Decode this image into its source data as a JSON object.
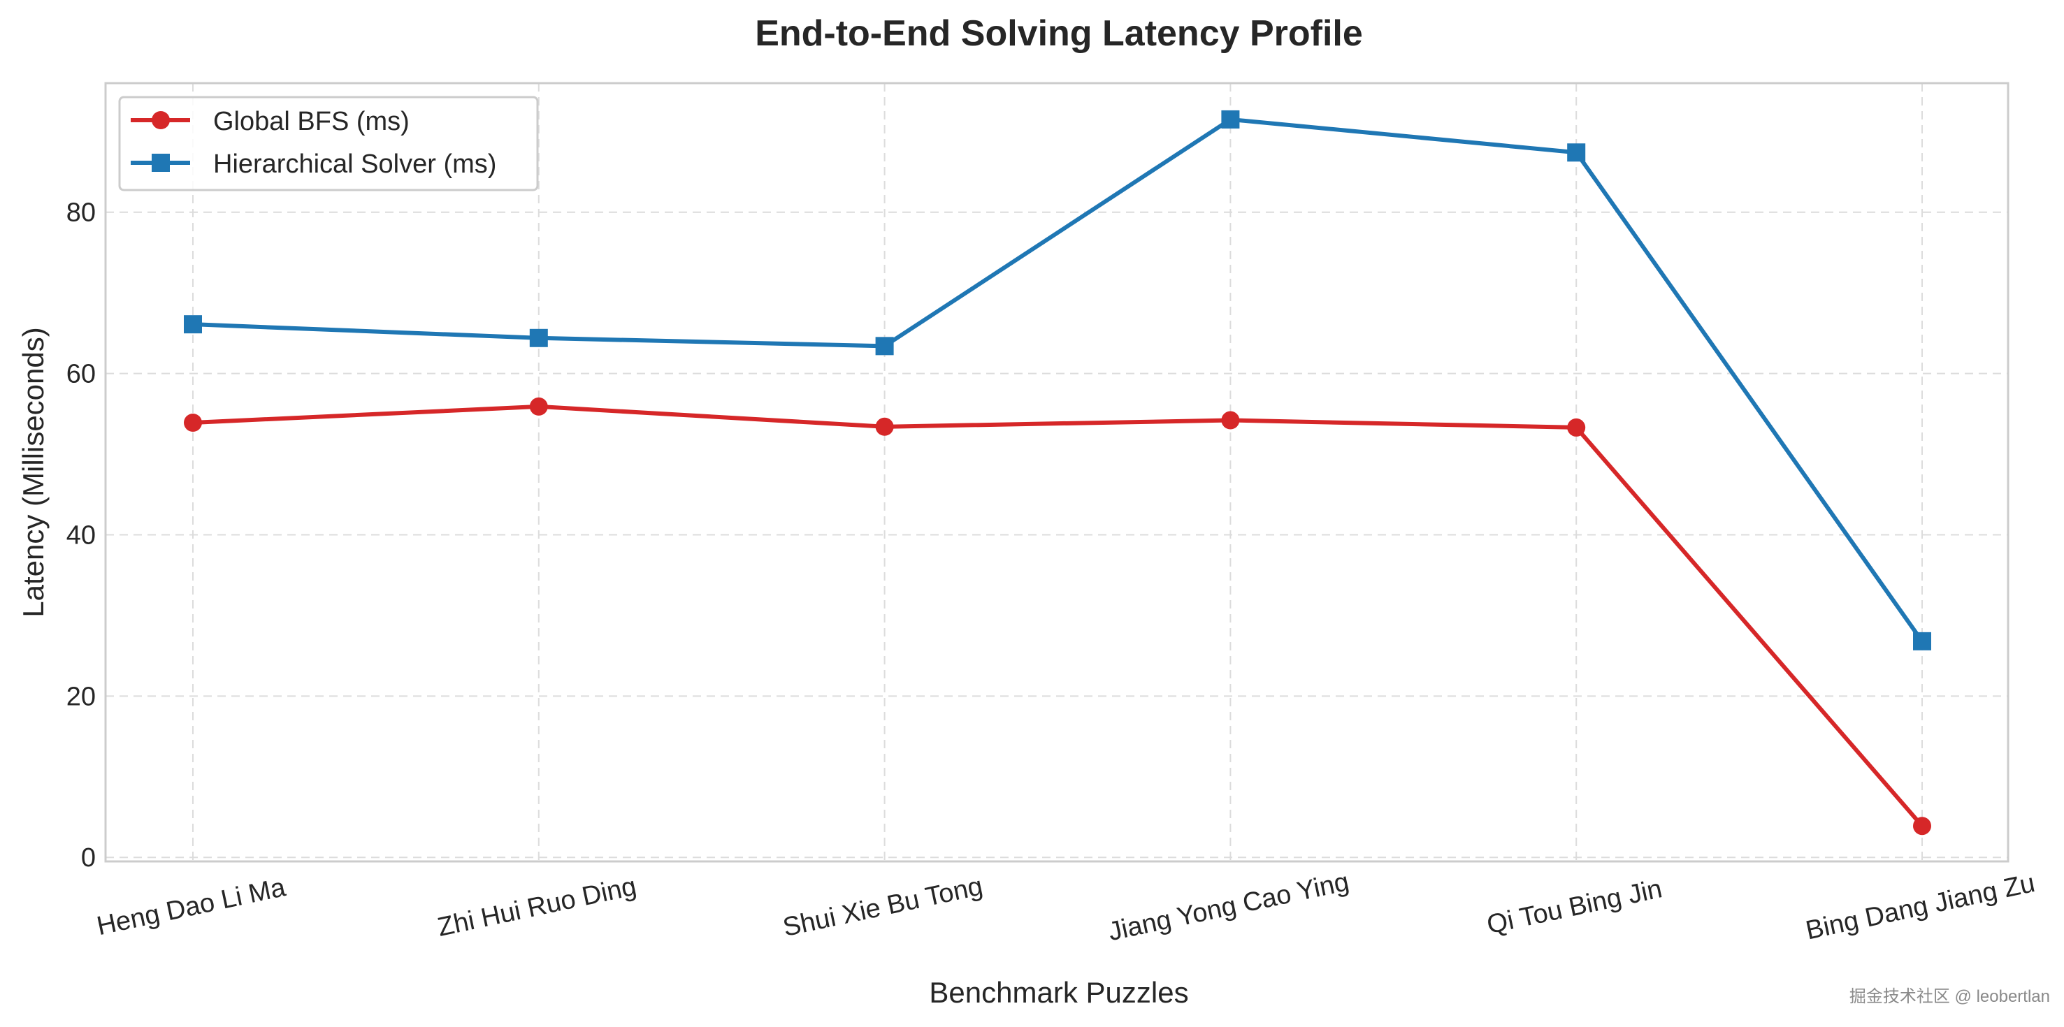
{
  "chart_data": {
    "type": "line",
    "title": "End-to-End Solving Latency Profile",
    "xlabel": "Benchmark Puzzles",
    "ylabel": "Latency (Milliseconds)",
    "categories": [
      "Heng Dao Li Ma",
      "Zhi Hui Ruo Ding",
      "Shui Xie Bu Tong",
      "Jiang Yong Cao Ying",
      "Qi Tou Bing Jin",
      "Bing Dang Jiang Zu"
    ],
    "yticks": [
      0,
      20,
      40,
      60,
      80
    ],
    "ylim": [
      -0.5,
      96
    ],
    "grid": true,
    "legend_position": "top-left",
    "series": [
      {
        "name": "Global BFS (ms)",
        "marker": "circle",
        "color": "#d62728",
        "values": [
          53.9,
          55.9,
          53.4,
          54.2,
          53.3,
          3.9
        ]
      },
      {
        "name": "Hierarchical Solver (ms)",
        "marker": "square",
        "color": "#1f77b4",
        "values": [
          66.1,
          64.4,
          63.4,
          91.5,
          87.4,
          26.8
        ]
      }
    ]
  },
  "watermark": "掘金技术社区 @ leobertlan"
}
